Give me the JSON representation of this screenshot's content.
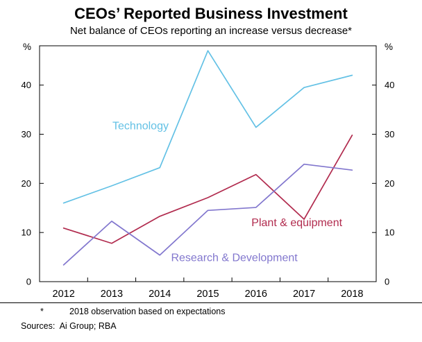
{
  "title": "CEOs’ Reported Business Investment",
  "subtitle": "Net balance of CEOs reporting an increase versus decrease*",
  "footnote": {
    "marker": "*",
    "text": "2018 observation based on expectations"
  },
  "sources": "Sources:  Ai Group; RBA",
  "chart_data": {
    "type": "line",
    "x": [
      2012,
      2013,
      2014,
      2015,
      2016,
      2017,
      2018
    ],
    "series": [
      {
        "name": "Technology",
        "color": "#63C1E5",
        "values": [
          16,
          19.5,
          23.2,
          47,
          31.4,
          39.5,
          42
        ],
        "label": {
          "x": 2013.6,
          "y": 31
        }
      },
      {
        "name": "Plant & equipment",
        "color": "#B12B4E",
        "values": [
          10.9,
          7.8,
          13.3,
          17.1,
          21.8,
          12.7,
          29.8
        ],
        "label": {
          "x": 2016.85,
          "y": 11.3
        }
      },
      {
        "name": "Research & Development",
        "color": "#8277CE",
        "values": [
          3.4,
          12.3,
          5.4,
          14.5,
          15.1,
          23.9,
          22.7
        ],
        "label": {
          "x": 2015.55,
          "y": 4.2
        }
      }
    ],
    "ylim": [
      0,
      48
    ],
    "yticks": [
      0,
      10,
      20,
      30,
      40
    ],
    "unit_left": "%",
    "unit_right": "%",
    "grid": false,
    "legend_position": "inline-labels"
  }
}
